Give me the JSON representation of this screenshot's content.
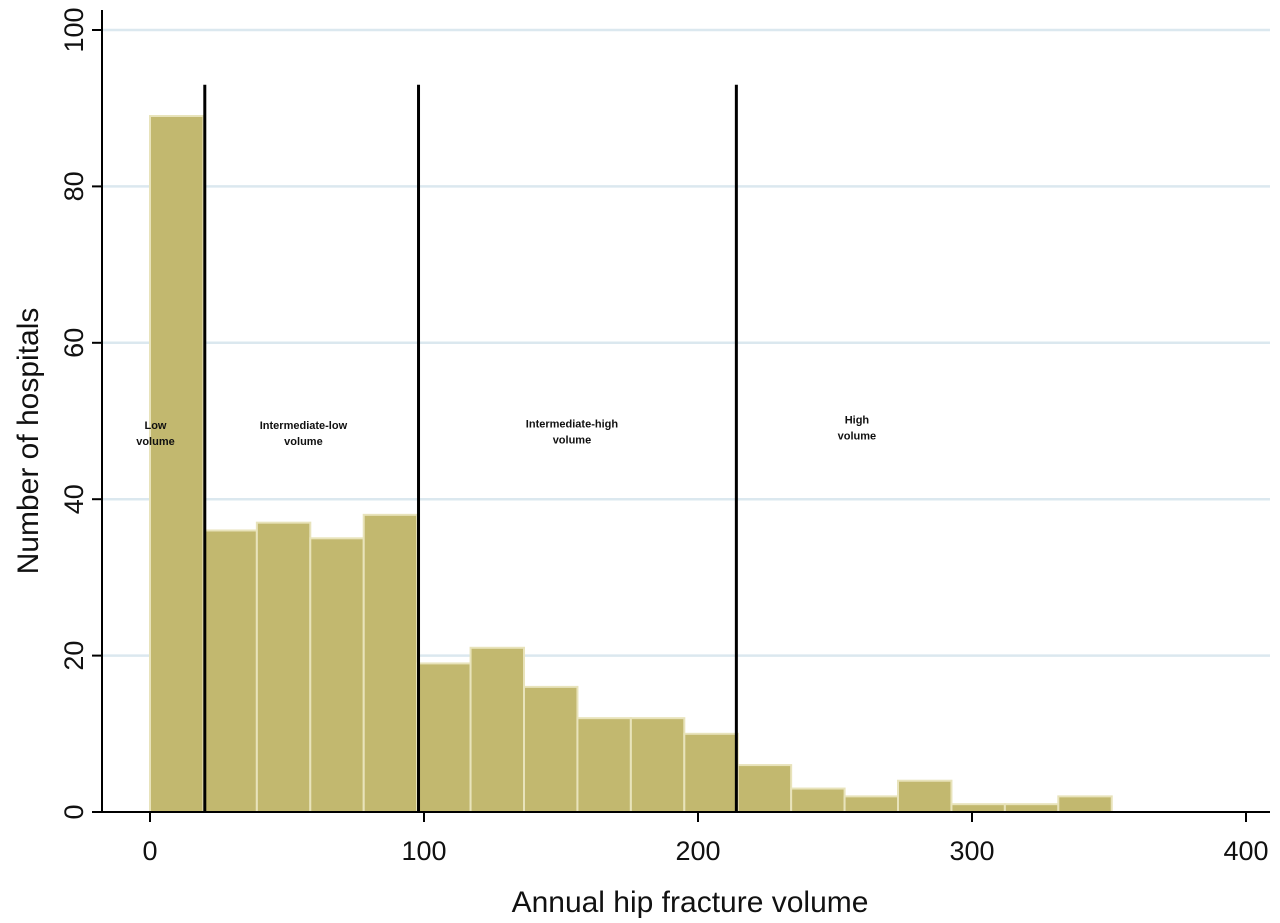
{
  "chart_data": {
    "type": "bar",
    "subtype": "histogram",
    "xlabel": "Annual hip fracture volume",
    "ylabel": "Number of hospitals",
    "xlim": [
      -20,
      410
    ],
    "ylim": [
      0,
      102
    ],
    "xticks": [
      0,
      100,
      200,
      300,
      400
    ],
    "yticks": [
      0,
      20,
      40,
      60,
      80,
      100
    ],
    "grid": "horizontal",
    "bar_color": "#c2b86f",
    "bar_edge_color": "#e8e3bb",
    "gridline_color": "#dbe8ef",
    "bins": [
      {
        "x0": 0,
        "x1": 19.5,
        "value": 89
      },
      {
        "x0": 19.5,
        "x1": 39,
        "value": 36
      },
      {
        "x0": 39,
        "x1": 58.5,
        "value": 37
      },
      {
        "x0": 58.5,
        "x1": 78,
        "value": 35
      },
      {
        "x0": 78,
        "x1": 97.5,
        "value": 38
      },
      {
        "x0": 97.5,
        "x1": 117,
        "value": 19
      },
      {
        "x0": 117,
        "x1": 136.5,
        "value": 21
      },
      {
        "x0": 136.5,
        "x1": 156,
        "value": 16
      },
      {
        "x0": 156,
        "x1": 175.5,
        "value": 12
      },
      {
        "x0": 175.5,
        "x1": 195,
        "value": 12
      },
      {
        "x0": 195,
        "x1": 214.5,
        "value": 10
      },
      {
        "x0": 214.5,
        "x1": 234,
        "value": 6
      },
      {
        "x0": 234,
        "x1": 253.5,
        "value": 3
      },
      {
        "x0": 253.5,
        "x1": 273,
        "value": 2
      },
      {
        "x0": 273,
        "x1": 292.5,
        "value": 4
      },
      {
        "x0": 292.5,
        "x1": 312,
        "value": 1
      },
      {
        "x0": 312,
        "x1": 331.5,
        "value": 1
      },
      {
        "x0": 331.5,
        "x1": 351,
        "value": 2
      }
    ],
    "cutoffs": [
      20,
      98,
      214
    ],
    "cutoff_top": 93,
    "annotations": [
      {
        "lines": [
          "Low",
          "volume"
        ],
        "x": 2,
        "y": 49
      },
      {
        "lines": [
          "Intermediate-low",
          "volume"
        ],
        "x": 56,
        "y": 49
      },
      {
        "lines": [
          "Intermediate-high",
          "volume"
        ],
        "x": 154,
        "y": 49.2
      },
      {
        "lines": [
          "High",
          "volume"
        ],
        "x": 258,
        "y": 49.7
      }
    ]
  }
}
